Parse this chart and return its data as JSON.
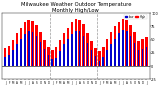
{
  "title": "Milwaukee Weather Outdoor Temperature\nMonthly High/Low",
  "title_fontsize": 3.8,
  "months": [
    "J",
    "F",
    "M",
    "A",
    "M",
    "J",
    "J",
    "A",
    "S",
    "O",
    "N",
    "D",
    "J",
    "F",
    "M",
    "A",
    "M",
    "J",
    "J",
    "A",
    "S",
    "O",
    "N",
    "D",
    "J",
    "F",
    "M",
    "A",
    "M",
    "J",
    "J",
    "A",
    "S",
    "O",
    "N",
    "D",
    "J"
  ],
  "highs": [
    35,
    38,
    49,
    62,
    73,
    83,
    87,
    85,
    77,
    65,
    49,
    36,
    31,
    36,
    50,
    62,
    72,
    83,
    89,
    87,
    80,
    63,
    47,
    35,
    29,
    37,
    52,
    65,
    76,
    84,
    90,
    88,
    78,
    64,
    48,
    52,
    55
  ],
  "lows": [
    17,
    20,
    30,
    41,
    51,
    61,
    67,
    65,
    57,
    46,
    32,
    21,
    13,
    16,
    29,
    41,
    52,
    61,
    67,
    66,
    57,
    44,
    30,
    19,
    10,
    17,
    30,
    42,
    52,
    62,
    68,
    66,
    57,
    44,
    30,
    32,
    36
  ],
  "high_color": "#ff0000",
  "low_color": "#0000cc",
  "bg_color": "#ffffff",
  "ylim": [
    -25,
    100
  ],
  "yticks": [
    -25,
    0,
    25,
    50,
    75,
    100
  ],
  "ytick_labels": [
    "-25",
    "0",
    "25",
    "50",
    "75",
    "100"
  ],
  "year_seps": [
    11.5,
    23.5
  ],
  "legend_high": "High",
  "legend_low": "Low"
}
